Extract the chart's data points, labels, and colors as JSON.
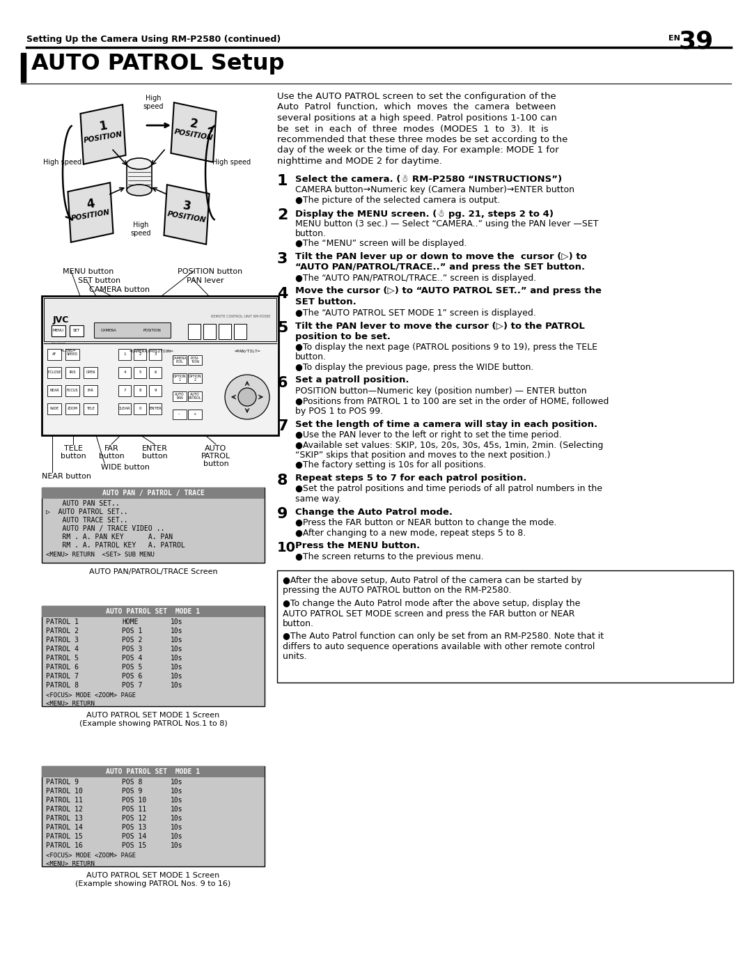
{
  "page_title_header": "Setting Up the Camera Using RM-P2580 (continued)",
  "page_number": "39",
  "section_title": "AUTO PATROL Setup",
  "body_text_lines": [
    "Use the AUTO PATROL screen to set the configuration of the",
    "Auto  Patrol  function,  which  moves  the  camera  between",
    "several positions at a high speed. Patrol positions 1-100 can",
    "be  set  in  each  of  three  modes  (MODES  1  to  3).  It  is",
    "recommended that these three modes be set according to the",
    "day of the week or the time of day. For example: MODE 1 for",
    "nighttime and MODE 2 for daytime."
  ],
  "menu_screen_title": "AUTO PAN / PATROL / TRACE",
  "menu_screen_items": [
    "    AUTO PAN SET..",
    "▷  AUTO PATROL SET..",
    "    AUTO TRACE SET..",
    "    AUTO PAN / TRACE VIDEO ..",
    "    RM . A. PAN KEY      A. PAN",
    "    RM . A. PATROL KEY   A. PATROL"
  ],
  "menu_screen_footer": "<MENU> RETURN  <SET> SUB MENU",
  "menu_screen_caption": "AUTO PAN/PATROL/TRACE Screen",
  "patrol_set1_title": "AUTO PATROL SET  MODE 1",
  "patrol_set1_rows": [
    [
      "PATROL 1",
      "HOME",
      "10s"
    ],
    [
      "PATROL 2",
      "POS 1",
      "10s"
    ],
    [
      "PATROL 3",
      "POS 2",
      "10s"
    ],
    [
      "PATROL 4",
      "POS 3",
      "10s"
    ],
    [
      "PATROL 5",
      "POS 4",
      "10s"
    ],
    [
      "PATROL 6",
      "POS 5",
      "10s"
    ],
    [
      "PATROL 7",
      "POS 6",
      "10s"
    ],
    [
      "PATROL 8",
      "POS 7",
      "10s"
    ]
  ],
  "patrol_set1_footer": "<FOCUS> MODE <ZOOM> PAGE\n<MENU> RETURN",
  "patrol_set1_caption1": "AUTO PATROL SET MODE 1 Screen",
  "patrol_set1_caption2": "(Example showing PATROL Nos.1 to 8)",
  "patrol_set2_title": "AUTO PATROL SET  MODE 1",
  "patrol_set2_rows": [
    [
      "PATROL 9",
      "POS 8",
      "10s"
    ],
    [
      "PATROL 10",
      "POS 9",
      "10s"
    ],
    [
      "PATROL 11",
      "POS 10",
      "10s"
    ],
    [
      "PATROL 12",
      "POS 11",
      "10s"
    ],
    [
      "PATROL 13",
      "POS 12",
      "10s"
    ],
    [
      "PATROL 14",
      "POS 13",
      "10s"
    ],
    [
      "PATROL 15",
      "POS 14",
      "10s"
    ],
    [
      "PATROL 16",
      "POS 15",
      "10s"
    ]
  ],
  "patrol_set2_footer": "<FOCUS> MODE <ZOOM> PAGE\n<MENU> RETURN",
  "patrol_set2_caption1": "AUTO PATROL SET MODE 1 Screen",
  "patrol_set2_caption2": "(Example showing PATROL Nos. 9 to 16)"
}
